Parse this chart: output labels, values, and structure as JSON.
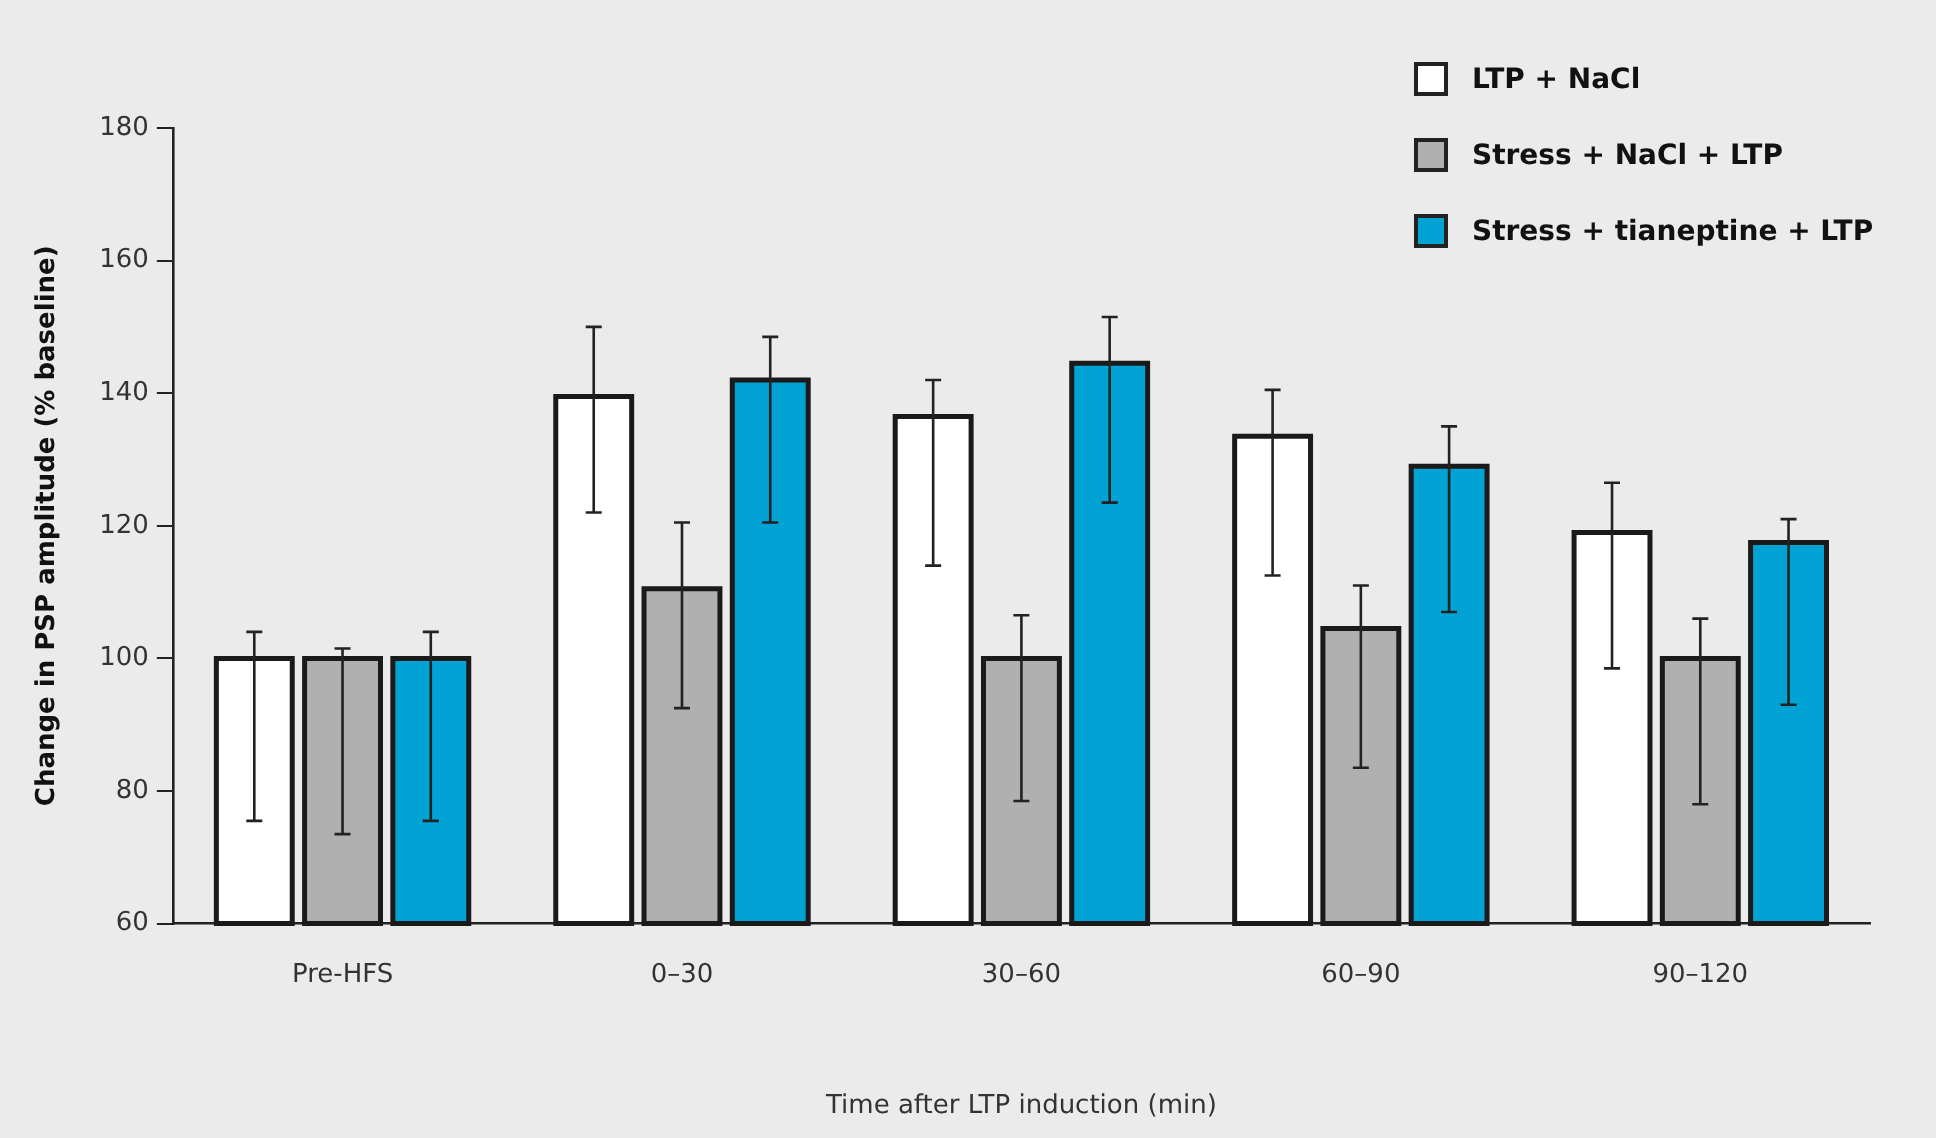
{
  "chart_data": {
    "type": "bar",
    "xlabel": "Time after LTP induction (min)",
    "ylabel": "Change in PSP amplitude (% baseline)",
    "categories": [
      "Pre-HFS",
      "0–30",
      "30–60",
      "60–90",
      "90–120"
    ],
    "ylim": [
      60,
      180
    ],
    "yticks": [
      60,
      80,
      100,
      120,
      140,
      160,
      180
    ],
    "legend": "top right",
    "series": [
      {
        "name": "LTP + NaCl",
        "color": "#ffffff",
        "values": [
          100,
          139.5,
          136.5,
          133.5,
          119
        ],
        "errors": [
          [
            75.5,
            104
          ],
          [
            122,
            150
          ],
          [
            114,
            142
          ],
          [
            112.5,
            140.5
          ],
          [
            98.5,
            126.5
          ]
        ]
      },
      {
        "name": "Stress + NaCl + LTP",
        "color": "#b0b0b0",
        "values": [
          100,
          110.5,
          100,
          104.5,
          100
        ],
        "errors": [
          [
            73.5,
            101.5
          ],
          [
            92.5,
            120.5
          ],
          [
            78.5,
            106.5
          ],
          [
            83.5,
            111
          ],
          [
            78,
            106
          ]
        ]
      },
      {
        "name": "Stress + tianeptine + LTP",
        "color": "#00a3d3",
        "values": [
          100,
          142,
          144.5,
          129,
          117.5
        ],
        "errors": [
          [
            75.5,
            104
          ],
          [
            120.5,
            148.5
          ],
          [
            123.5,
            151.5
          ],
          [
            107,
            135
          ],
          [
            93,
            121
          ]
        ]
      }
    ]
  }
}
